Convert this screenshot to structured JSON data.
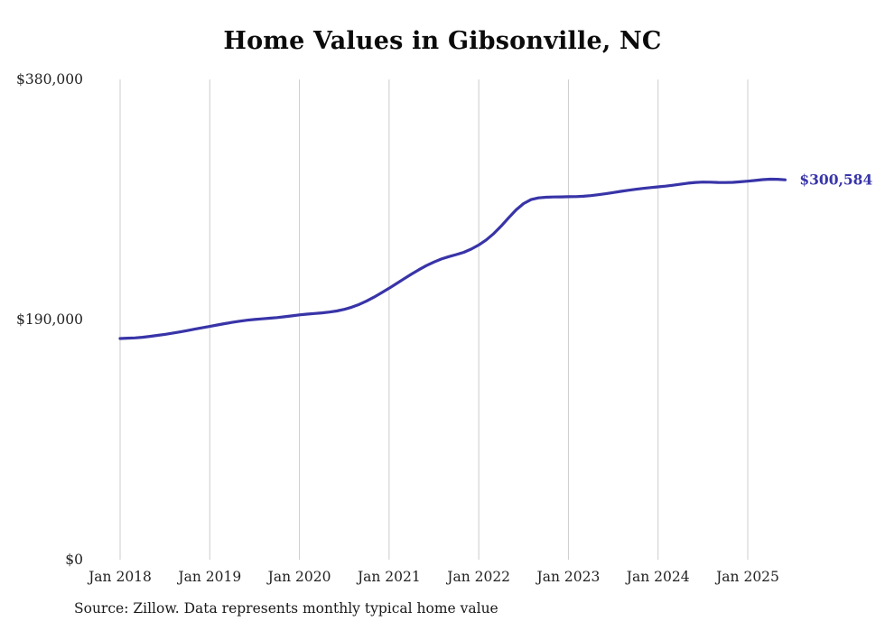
{
  "title": "Home Values in Gibsonville, NC",
  "source_note": "Source: Zillow. Data represents monthly typical home value",
  "end_label": "$300,584",
  "colors": {
    "line": "#3834a8",
    "grid": "#cccccc",
    "axis_text": "#222222"
  },
  "chart_data": {
    "type": "line",
    "title": "Home Values in Gibsonville, NC",
    "xlabel": "",
    "ylabel": "",
    "ylim": [
      0,
      380000
    ],
    "grid": "vertical-only",
    "x_ticks": [
      "Jan 2018",
      "Jan 2019",
      "Jan 2020",
      "Jan 2021",
      "Jan 2022",
      "Jan 2023",
      "Jan 2024",
      "Jan 2025"
    ],
    "y_ticks": [
      "$380,000",
      "$190,000",
      "$0"
    ],
    "y_tick_values": [
      380000,
      190000,
      0
    ],
    "x_start": "Jan 2018",
    "x_end": "Jun 2025",
    "x_interval": "monthly",
    "end_value": 300584,
    "series": [
      {
        "name": "Typical home value",
        "values": [
          175000,
          175300,
          175500,
          176000,
          176700,
          177500,
          178300,
          179200,
          180200,
          181300,
          182400,
          183500,
          184600,
          185700,
          186800,
          187800,
          188700,
          189500,
          190100,
          190600,
          191100,
          191600,
          192200,
          192900,
          193700,
          194300,
          194800,
          195300,
          195900,
          196800,
          198100,
          199800,
          202000,
          204700,
          207800,
          211200,
          214800,
          218500,
          222300,
          226000,
          229500,
          232700,
          235500,
          237900,
          239800,
          241400,
          243200,
          245800,
          249000,
          253000,
          258000,
          264000,
          270500,
          276800,
          281800,
          284900,
          286300,
          286800,
          287000,
          287100,
          287200,
          287300,
          287600,
          288100,
          288800,
          289600,
          290500,
          291400,
          292300,
          293100,
          293800,
          294400,
          295000,
          295600,
          296300,
          297100,
          297900,
          298500,
          298800,
          298700,
          298500,
          298400,
          298600,
          299000,
          299500,
          300100,
          300700,
          301100,
          301000,
          300584
        ]
      }
    ]
  }
}
